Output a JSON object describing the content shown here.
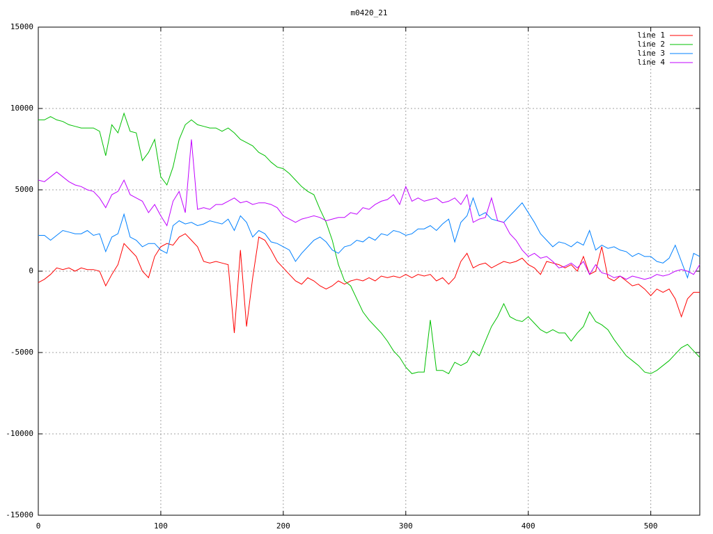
{
  "chart_data": {
    "type": "line",
    "title": "m0420_21",
    "x": [
      0,
      5,
      10,
      15,
      20,
      25,
      30,
      35,
      40,
      45,
      50,
      55,
      60,
      65,
      70,
      75,
      80,
      85,
      90,
      95,
      100,
      105,
      110,
      115,
      120,
      125,
      130,
      135,
      140,
      145,
      150,
      155,
      160,
      165,
      170,
      175,
      180,
      185,
      190,
      195,
      200,
      205,
      210,
      215,
      220,
      225,
      230,
      235,
      240,
      245,
      250,
      255,
      260,
      265,
      270,
      275,
      280,
      285,
      290,
      295,
      300,
      305,
      310,
      315,
      320,
      325,
      330,
      335,
      340,
      345,
      350,
      355,
      360,
      365,
      370,
      375,
      380,
      385,
      390,
      395,
      400,
      405,
      410,
      415,
      420,
      425,
      430,
      435,
      440,
      445,
      450,
      455,
      460,
      465,
      470,
      475,
      480,
      485,
      490,
      495,
      500,
      505,
      510,
      515,
      520,
      525,
      530,
      535,
      540
    ],
    "series": [
      {
        "name": "line 1",
        "color": "#ff0000",
        "values": [
          -700,
          -500,
          -200,
          200,
          100,
          200,
          0,
          200,
          100,
          100,
          0,
          -900,
          -200,
          400,
          1700,
          1300,
          900,
          0,
          -400,
          900,
          1500,
          1700,
          1600,
          2100,
          2300,
          1900,
          1500,
          600,
          500,
          600,
          500,
          400,
          -3800,
          1300,
          -3400,
          -400,
          2100,
          1900,
          1300,
          600,
          200,
          -200,
          -600,
          -800,
          -400,
          -600,
          -900,
          -1100,
          -900,
          -600,
          -800,
          -600,
          -500,
          -600,
          -400,
          -600,
          -300,
          -400,
          -300,
          -400,
          -200,
          -400,
          -200,
          -300,
          -200,
          -600,
          -400,
          -800,
          -400,
          600,
          1100,
          200,
          400,
          500,
          200,
          400,
          600,
          500,
          600,
          800,
          400,
          200,
          -200,
          600,
          500,
          400,
          200,
          400,
          0,
          900,
          -200,
          0,
          1500,
          -400,
          -600,
          -300,
          -600,
          -900,
          -800,
          -1100,
          -1500,
          -1100,
          -1300,
          -1100,
          -1700,
          -2800,
          -1700,
          -1300,
          -1300
        ]
      },
      {
        "name": "line 2",
        "color": "#00c000",
        "values": [
          9300,
          9300,
          9500,
          9300,
          9200,
          9000,
          8900,
          8800,
          8800,
          8800,
          8600,
          7100,
          9000,
          8500,
          9700,
          8600,
          8500,
          6800,
          7300,
          8100,
          5800,
          5300,
          6400,
          8100,
          9000,
          9300,
          9000,
          8900,
          8800,
          8800,
          8600,
          8800,
          8500,
          8100,
          7900,
          7700,
          7300,
          7100,
          6700,
          6400,
          6300,
          6000,
          5600,
          5200,
          4900,
          4700,
          3800,
          3000,
          1900,
          400,
          -600,
          -900,
          -1700,
          -2500,
          -3000,
          -3400,
          -3800,
          -4300,
          -4900,
          -5300,
          -5900,
          -6300,
          -6200,
          -6200,
          -3000,
          -6100,
          -6100,
          -6300,
          -5600,
          -5800,
          -5600,
          -4900,
          -5200,
          -4300,
          -3400,
          -2800,
          -2000,
          -2800,
          -3000,
          -3100,
          -2800,
          -3200,
          -3600,
          -3800,
          -3600,
          -3800,
          -3800,
          -4300,
          -3800,
          -3400,
          -2500,
          -3100,
          -3300,
          -3600,
          -4200,
          -4700,
          -5200,
          -5500,
          -5800,
          -6200,
          -6300,
          -6100,
          -5800,
          -5500,
          -5100,
          -4700,
          -4500,
          -4900,
          -5300
        ]
      },
      {
        "name": "line 3",
        "color": "#0080ff",
        "values": [
          2200,
          2200,
          1900,
          2200,
          2500,
          2400,
          2300,
          2300,
          2500,
          2200,
          2300,
          1200,
          2100,
          2300,
          3500,
          2100,
          1900,
          1500,
          1700,
          1700,
          1300,
          1100,
          2800,
          3100,
          2900,
          3000,
          2800,
          2900,
          3100,
          3000,
          2900,
          3200,
          2500,
          3400,
          3000,
          2100,
          2500,
          2300,
          1800,
          1700,
          1500,
          1300,
          600,
          1100,
          1500,
          1900,
          2100,
          1800,
          1300,
          1100,
          1500,
          1600,
          1900,
          1800,
          2100,
          1900,
          2300,
          2200,
          2500,
          2400,
          2200,
          2300,
          2600,
          2600,
          2800,
          2500,
          2900,
          3200,
          1800,
          3000,
          3400,
          4500,
          3400,
          3600,
          3200,
          3100,
          3000,
          3400,
          3800,
          4200,
          3600,
          3000,
          2300,
          1900,
          1500,
          1800,
          1700,
          1500,
          1800,
          1600,
          2500,
          1300,
          1600,
          1400,
          1500,
          1300,
          1200,
          900,
          1100,
          900,
          900,
          600,
          500,
          800,
          1600,
          600,
          -400,
          1100,
          900
        ]
      },
      {
        "name": "line 4",
        "color": "#c000ff",
        "values": [
          5600,
          5500,
          5800,
          6100,
          5800,
          5500,
          5300,
          5200,
          5000,
          4900,
          4500,
          3900,
          4700,
          4900,
          5600,
          4700,
          4500,
          4300,
          3600,
          4100,
          3400,
          2800,
          4300,
          4900,
          3600,
          8100,
          3800,
          3900,
          3800,
          4100,
          4100,
          4300,
          4500,
          4200,
          4300,
          4100,
          4200,
          4200,
          4100,
          3900,
          3400,
          3200,
          3000,
          3200,
          3300,
          3400,
          3300,
          3100,
          3200,
          3300,
          3300,
          3600,
          3500,
          3900,
          3800,
          4100,
          4300,
          4400,
          4700,
          4100,
          5200,
          4300,
          4500,
          4300,
          4400,
          4500,
          4200,
          4300,
          4500,
          4100,
          4700,
          3000,
          3200,
          3300,
          4500,
          3100,
          3000,
          2300,
          1900,
          1300,
          900,
          1100,
          800,
          900,
          600,
          200,
          300,
          500,
          200,
          600,
          -200,
          400,
          -100,
          -200,
          -400,
          -300,
          -500,
          -300,
          -400,
          -500,
          -400,
          -200,
          -300,
          -200,
          0,
          100,
          0,
          -200,
          400
        ]
      }
    ],
    "xlim": [
      0,
      540
    ],
    "ylim": [
      -15000,
      15000
    ],
    "xticks": [
      0,
      100,
      200,
      300,
      400,
      500
    ],
    "yticks": [
      -15000,
      -10000,
      -5000,
      0,
      5000,
      10000,
      15000
    ],
    "grid": true,
    "legend": "top-right"
  }
}
